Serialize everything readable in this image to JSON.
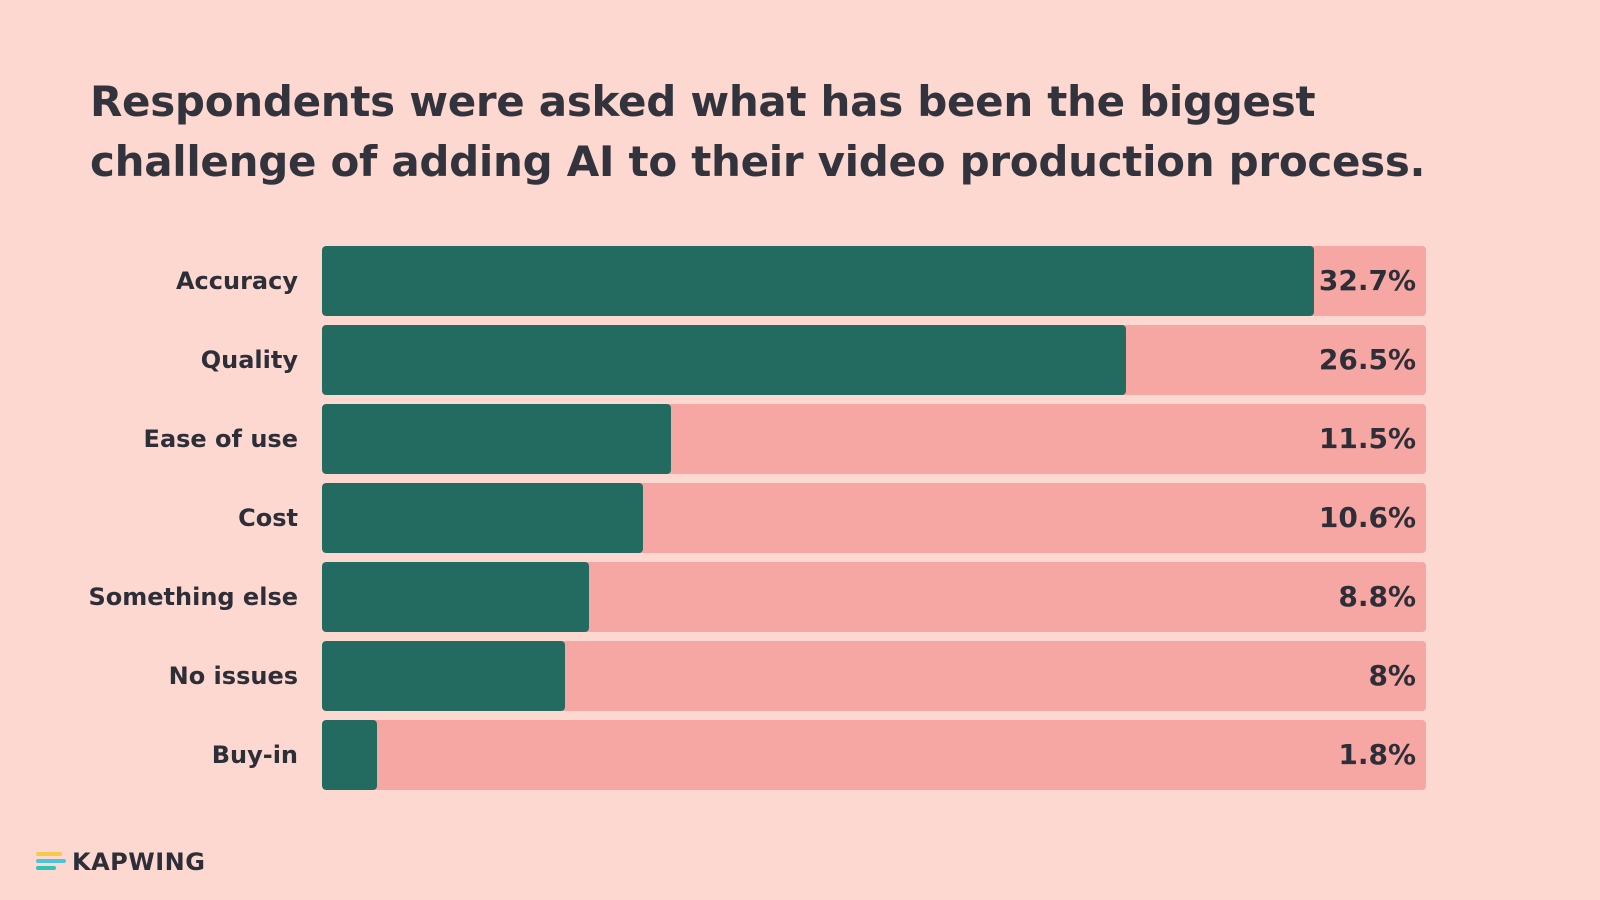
{
  "title": "Respondents were asked what has been the biggest challenge of adding AI to their video production process.",
  "chart_data": {
    "type": "bar",
    "orientation": "horizontal",
    "title": "Respondents were asked what has been the biggest challenge of adding AI to their video production process.",
    "categories": [
      "Accuracy",
      "Quality",
      "Ease of use",
      "Cost",
      "Something else",
      "No issues",
      "Buy-in"
    ],
    "values": [
      32.7,
      26.5,
      11.5,
      10.6,
      8.8,
      8,
      1.8
    ],
    "value_labels": [
      "32.7%",
      "26.5%",
      "11.5%",
      "10.6%",
      "8.8%",
      "8%",
      "1.8%"
    ],
    "xlim": [
      0,
      36.4
    ],
    "grid": false,
    "legend": "none",
    "colors": {
      "bar": "#236A61",
      "track": "#F6A6A3",
      "background": "#FDD8D0",
      "text": "#2E2E38"
    }
  },
  "brand": {
    "name": "KAPWING",
    "icon": "kapwing-logo-icon",
    "colors": [
      "#F7C948",
      "#4FC3D9",
      "#2EC4B6"
    ]
  }
}
